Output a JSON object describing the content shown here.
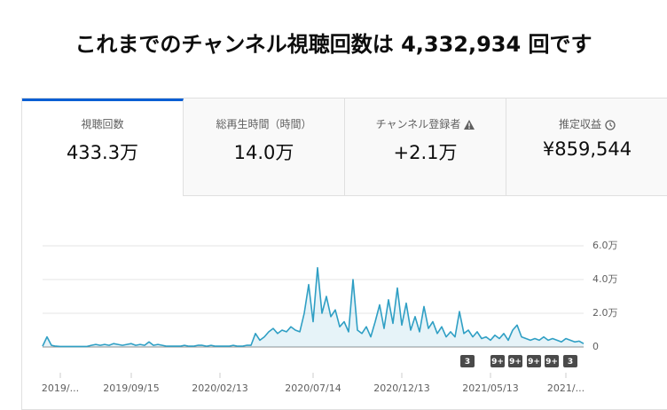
{
  "header": {
    "title": "これまでのチャンネル視聴回数は 4,332,934 回です"
  },
  "tabs": [
    {
      "label": "視聴回数",
      "value": "433.3万"
    },
    {
      "label": "総再生時間（時間）",
      "value": "14.0万"
    },
    {
      "label": "チャンネル登録者",
      "value": "+2.1万"
    },
    {
      "label": "推定収益",
      "value": "¥859,544"
    }
  ],
  "chart_data": {
    "type": "line",
    "color": "#2f9fc4",
    "ylim": [
      0,
      6
    ],
    "yticks": [
      0,
      {
        "value": 2,
        "label": "2.0万"
      },
      {
        "value": 4,
        "label": "4.0万"
      },
      {
        "value": 6,
        "label": "6.0万"
      }
    ],
    "grid": true,
    "categories": [
      null,
      null,
      null,
      null,
      "2019/...",
      null,
      null,
      null,
      null,
      null,
      null,
      null,
      null,
      null,
      null,
      null,
      null,
      null,
      null,
      null,
      "2019/09/15",
      null,
      null,
      null,
      null,
      null,
      null,
      null,
      null,
      null,
      null,
      null,
      null,
      null,
      null,
      null,
      null,
      null,
      null,
      null,
      "2020/02/13",
      null,
      null,
      null,
      null,
      null,
      null,
      null,
      null,
      null,
      null,
      null,
      null,
      null,
      null,
      null,
      null,
      null,
      null,
      null,
      null,
      "2020/07/14",
      null,
      null,
      null,
      null,
      null,
      null,
      null,
      null,
      null,
      null,
      null,
      null,
      null,
      null,
      null,
      null,
      null,
      null,
      null,
      "2020/12/13",
      null,
      null,
      null,
      null,
      null,
      null,
      null,
      null,
      null,
      null,
      null,
      null,
      null,
      null,
      null,
      null,
      null,
      null,
      null,
      "2021/05/13",
      null,
      null,
      null,
      null,
      null,
      null,
      null,
      null,
      null,
      null,
      null,
      null,
      null,
      null,
      null,
      null,
      "2021/...",
      null,
      null,
      null,
      null
    ],
    "values": [
      0.05,
      0.6,
      0.1,
      0.05,
      0.03,
      0.03,
      0.03,
      0.03,
      0.03,
      0.03,
      0.03,
      0.1,
      0.15,
      0.1,
      0.15,
      0.1,
      0.2,
      0.15,
      0.1,
      0.15,
      0.2,
      0.1,
      0.15,
      0.1,
      0.3,
      0.1,
      0.15,
      0.1,
      0.05,
      0.05,
      0.05,
      0.05,
      0.1,
      0.05,
      0.05,
      0.1,
      0.1,
      0.05,
      0.1,
      0.05,
      0.05,
      0.05,
      0.05,
      0.1,
      0.05,
      0.05,
      0.1,
      0.1,
      0.8,
      0.4,
      0.6,
      0.9,
      1.1,
      0.8,
      1.0,
      0.9,
      1.2,
      1.0,
      0.9,
      2.0,
      3.7,
      1.5,
      4.7,
      2.0,
      3.0,
      1.8,
      2.2,
      1.2,
      1.5,
      0.9,
      4.0,
      1.0,
      0.8,
      1.2,
      0.6,
      1.5,
      2.5,
      1.1,
      2.8,
      1.4,
      3.5,
      1.3,
      2.6,
      1.0,
      1.8,
      0.9,
      2.4,
      1.1,
      1.5,
      0.8,
      1.2,
      0.6,
      0.9,
      0.6,
      2.1,
      0.8,
      1.0,
      0.6,
      0.9,
      0.5,
      0.6,
      0.4,
      0.7,
      0.5,
      0.8,
      0.4,
      1.0,
      1.3,
      0.6,
      0.5,
      0.4,
      0.5,
      0.4,
      0.6,
      0.4,
      0.5,
      0.4,
      0.3,
      0.5,
      0.4,
      0.3,
      0.35,
      0.2
    ],
    "annotations": [
      "3",
      "9+",
      "9+",
      "9+",
      "9+",
      "3"
    ]
  }
}
